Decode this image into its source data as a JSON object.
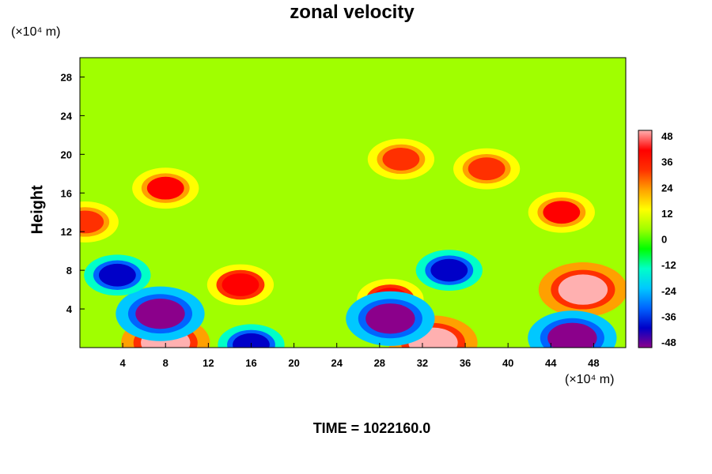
{
  "chart_data": {
    "type": "heatmap",
    "title": "zonal velocity",
    "ylabel": "Height",
    "xlabel": "",
    "x_unit_label": "(×10⁴ m)",
    "y_unit_label": "(×10⁴ m)",
    "x_ticks": [
      "4",
      "8",
      "12",
      "16",
      "20",
      "24",
      "28",
      "32",
      "36",
      "40",
      "44",
      "48"
    ],
    "y_ticks": [
      "4",
      "8",
      "12",
      "16",
      "20",
      "24",
      "28"
    ],
    "xlim": [
      0,
      51
    ],
    "ylim": [
      0,
      30
    ],
    "colorbar": {
      "ticks": [
        "48",
        "36",
        "24",
        "12",
        "0",
        "-12",
        "-24",
        "-36",
        "-48"
      ],
      "range": [
        -48,
        48
      ],
      "colormap": [
        "#8b008b",
        "#0000c8",
        "#0064ff",
        "#00c8ff",
        "#00ffc8",
        "#00ff00",
        "#a0ff00",
        "#ffff00",
        "#ffa000",
        "#ff3000",
        "#ff0000",
        "#ffb0b0"
      ]
    },
    "features": [
      {
        "x": 8,
        "y": 0.5,
        "value": 48
      },
      {
        "x": 33,
        "y": 0.5,
        "value": 48
      },
      {
        "x": 47,
        "y": 6,
        "value": 48
      },
      {
        "x": 15,
        "y": 6.5,
        "value": 40
      },
      {
        "x": 29,
        "y": 5,
        "value": 40
      },
      {
        "x": 7.5,
        "y": 3.5,
        "value": -48
      },
      {
        "x": 46,
        "y": 1,
        "value": -48
      },
      {
        "x": 29,
        "y": 3,
        "value": -44
      },
      {
        "x": 34.5,
        "y": 8,
        "value": -40
      },
      {
        "x": 16,
        "y": 0.3,
        "value": -40
      },
      {
        "x": 8,
        "y": 16.5,
        "value": 36
      },
      {
        "x": 45,
        "y": 14,
        "value": 36
      },
      {
        "x": 0.5,
        "y": 13,
        "value": 30
      },
      {
        "x": 3.5,
        "y": 7.5,
        "value": -40
      },
      {
        "x": 38,
        "y": 18.5,
        "value": 30
      },
      {
        "x": 30,
        "y": 19.5,
        "value": 28
      }
    ]
  },
  "footer": {
    "time_label": "TIME = 1022160.0"
  }
}
